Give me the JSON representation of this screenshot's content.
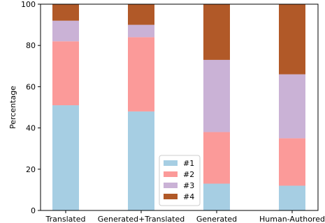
{
  "chart_data": {
    "type": "bar",
    "stacked": true,
    "title": "",
    "xlabel": "",
    "ylabel": "Percentage",
    "ylim": [
      0,
      100
    ],
    "yticks": [
      0,
      20,
      40,
      60,
      80,
      100
    ],
    "categories": [
      "Translated",
      "Generated+Translated",
      "Generated",
      "Human-Authored"
    ],
    "series": [
      {
        "name": "#1",
        "color": "#a6cee3",
        "values": [
          51,
          48,
          13,
          12
        ]
      },
      {
        "name": "#2",
        "color": "#fb9a99",
        "values": [
          31,
          36,
          25,
          23
        ]
      },
      {
        "name": "#3",
        "color": "#cab2d6",
        "values": [
          10,
          6,
          35,
          31
        ]
      },
      {
        "name": "#4",
        "color": "#b15928",
        "values": [
          8,
          10,
          27,
          34
        ]
      }
    ],
    "grid": false,
    "legend": {
      "position": "lower-center"
    }
  }
}
